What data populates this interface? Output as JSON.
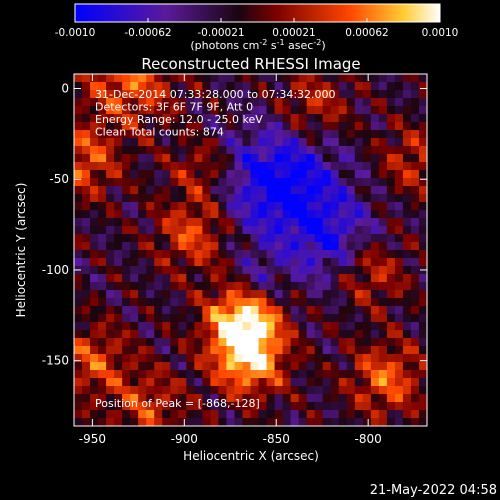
{
  "chart_data": {
    "type": "heatmap",
    "title": "Reconstructed RHESSI Image",
    "xlabel": "Heliocentric X (arcsec)",
    "ylabel": "Heliocentric Y (arcsec)",
    "xlim": [
      -960,
      -768
    ],
    "ylim": [
      -186,
      8
    ],
    "x_ticks": [
      -950,
      -900,
      -850,
      -800
    ],
    "y_ticks": [
      0,
      -50,
      -100,
      -150
    ],
    "colorbar": {
      "min": -0.001,
      "max": 0.001,
      "ticks": [
        "-0.0010",
        "-0.00062",
        "-0.00021",
        "0.00021",
        "0.00062",
        "0.0010"
      ],
      "label_main": "(photons cm",
      "label_exp1": "-2",
      "label_mid": " s",
      "label_exp2": "-1",
      "label_mid2": " asec",
      "label_exp3": "-2",
      "label_end": ")"
    },
    "annotations": [
      "31-Dec-2014 07:33:28.000 to 07:34:32.000",
      "Detectors: 3F 6F 7F 9F, Att 0",
      "Energy Range: 12.0 - 25.0 keV",
      "Clean    Total counts: 874"
    ],
    "peak_label": "Position of Peak = [-868,-128]",
    "peak": [
      -868,
      -128
    ]
  },
  "timestamp": "21-May-2022 04:58"
}
